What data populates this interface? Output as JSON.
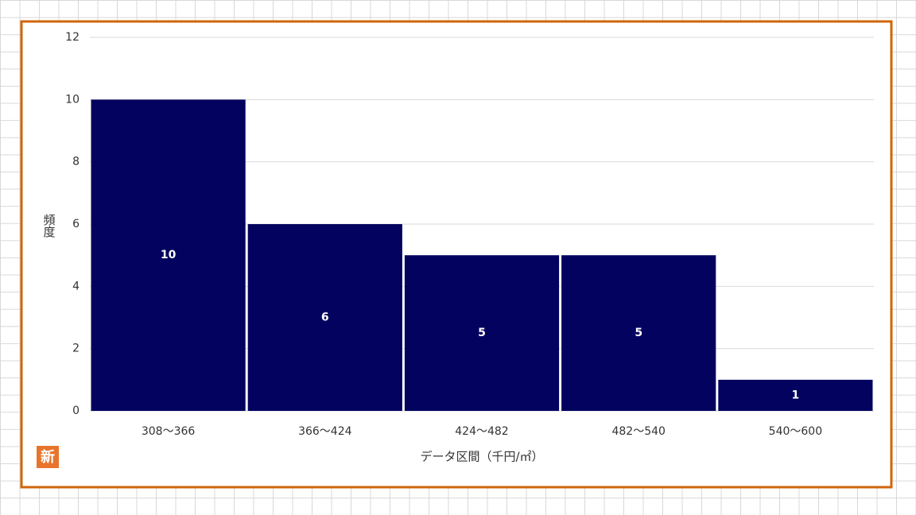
{
  "chart_data": {
    "type": "bar",
    "categories": [
      "308～366",
      "366～424",
      "424～482",
      "482～540",
      "540～600"
    ],
    "values": [
      10,
      6,
      5,
      5,
      1
    ],
    "color": "#03035f",
    "data_labels": true,
    "ylabel": "頻度",
    "xlabel": "データ区間（千円/㎡）",
    "badge": "新",
    "ylim": [
      0,
      12
    ],
    "yticks": [
      0,
      2,
      4,
      6,
      8,
      10,
      12
    ],
    "grid": true
  }
}
